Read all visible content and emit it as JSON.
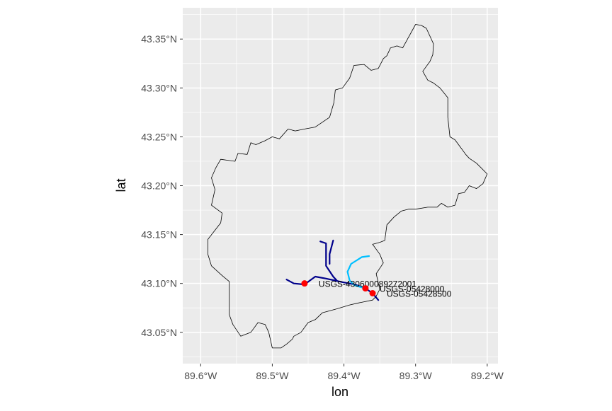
{
  "chart_data": {
    "type": "map",
    "xlabel": "lon",
    "ylabel": "lat",
    "xlim": [
      -89.625,
      -89.185
    ],
    "ylim": [
      43.018,
      43.382
    ],
    "x_ticks": [
      {
        "value": -89.6,
        "label": "89.6°W"
      },
      {
        "value": -89.5,
        "label": "89.5°W"
      },
      {
        "value": -89.4,
        "label": "89.4°W"
      },
      {
        "value": -89.3,
        "label": "89.3°W"
      },
      {
        "value": -89.2,
        "label": "89.2°W"
      }
    ],
    "y_ticks": [
      {
        "value": 43.05,
        "label": "43.05°N"
      },
      {
        "value": 43.1,
        "label": "43.10°N"
      },
      {
        "value": 43.15,
        "label": "43.15°N"
      },
      {
        "value": 43.2,
        "label": "43.20°N"
      },
      {
        "value": 43.25,
        "label": "43.25°N"
      },
      {
        "value": 43.3,
        "label": "43.30°N"
      },
      {
        "value": 43.35,
        "label": "43.35°N"
      }
    ],
    "panel_background": "#ebebeb",
    "grid_color": "#ffffff",
    "basin_outline_color": "#000000",
    "point_color": "#ff0000",
    "basin_outline": [
      [
        -89.58,
        43.196
      ],
      [
        -89.585,
        43.208
      ],
      [
        -89.579,
        43.218
      ],
      [
        -89.572,
        43.227
      ],
      [
        -89.562,
        43.226
      ],
      [
        -89.552,
        43.225
      ],
      [
        -89.548,
        43.233
      ],
      [
        -89.535,
        43.232
      ],
      [
        -89.53,
        43.244
      ],
      [
        -89.523,
        43.242
      ],
      [
        -89.51,
        43.246
      ],
      [
        -89.5,
        43.25
      ],
      [
        -89.49,
        43.248
      ],
      [
        -89.478,
        43.258
      ],
      [
        -89.468,
        43.256
      ],
      [
        -89.455,
        43.258
      ],
      [
        -89.44,
        43.26
      ],
      [
        -89.43,
        43.265
      ],
      [
        -89.42,
        43.27
      ],
      [
        -89.414,
        43.285
      ],
      [
        -89.412,
        43.298
      ],
      [
        -89.402,
        43.3
      ],
      [
        -89.392,
        43.31
      ],
      [
        -89.386,
        43.323
      ],
      [
        -89.372,
        43.324
      ],
      [
        -89.362,
        43.318
      ],
      [
        -89.352,
        43.32
      ],
      [
        -89.345,
        43.33
      ],
      [
        -89.34,
        43.333
      ],
      [
        -89.335,
        43.341
      ],
      [
        -89.326,
        43.343
      ],
      [
        -89.318,
        43.341
      ],
      [
        -89.3,
        43.365
      ],
      [
        -89.292,
        43.364
      ],
      [
        -89.285,
        43.361
      ],
      [
        -89.275,
        43.345
      ],
      [
        -89.276,
        43.334
      ],
      [
        -89.28,
        43.327
      ],
      [
        -89.29,
        43.317
      ],
      [
        -89.283,
        43.308
      ],
      [
        -89.275,
        43.305
      ],
      [
        -89.266,
        43.3
      ],
      [
        -89.255,
        43.29
      ],
      [
        -89.255,
        43.27
      ],
      [
        -89.252,
        43.25
      ],
      [
        -89.245,
        43.247
      ],
      [
        -89.238,
        43.24
      ],
      [
        -89.23,
        43.232
      ],
      [
        -89.225,
        43.228
      ],
      [
        -89.215,
        43.223
      ],
      [
        -89.2,
        43.212
      ],
      [
        -89.206,
        43.202
      ],
      [
        -89.215,
        43.197
      ],
      [
        -89.225,
        43.2
      ],
      [
        -89.232,
        43.193
      ],
      [
        -89.24,
        43.192
      ],
      [
        -89.245,
        43.18
      ],
      [
        -89.255,
        43.178
      ],
      [
        -89.264,
        43.182
      ],
      [
        -89.27,
        43.178
      ],
      [
        -89.283,
        43.178
      ],
      [
        -89.3,
        43.176
      ],
      [
        -89.31,
        43.176
      ],
      [
        -89.32,
        43.174
      ],
      [
        -89.33,
        43.168
      ],
      [
        -89.34,
        43.16
      ],
      [
        -89.343,
        43.144
      ],
      [
        -89.35,
        43.142
      ],
      [
        -89.36,
        43.14
      ],
      [
        -89.35,
        43.13
      ],
      [
        -89.345,
        43.121
      ],
      [
        -89.355,
        43.11
      ],
      [
        -89.35,
        43.094
      ],
      [
        -89.355,
        43.087
      ],
      [
        -89.36,
        43.083
      ],
      [
        -89.38,
        43.08
      ],
      [
        -89.392,
        43.078
      ],
      [
        -89.41,
        43.074
      ],
      [
        -89.43,
        43.07
      ],
      [
        -89.44,
        43.063
      ],
      [
        -89.45,
        43.06
      ],
      [
        -89.46,
        43.05
      ],
      [
        -89.47,
        43.046
      ],
      [
        -89.472,
        43.043
      ],
      [
        -89.48,
        43.038
      ],
      [
        -89.488,
        43.034
      ],
      [
        -89.5,
        43.034
      ],
      [
        -89.505,
        43.05
      ],
      [
        -89.51,
        43.058
      ],
      [
        -89.52,
        43.06
      ],
      [
        -89.53,
        43.05
      ],
      [
        -89.544,
        43.046
      ],
      [
        -89.555,
        43.058
      ],
      [
        -89.56,
        43.068
      ],
      [
        -89.56,
        43.085
      ],
      [
        -89.56,
        43.102
      ],
      [
        -89.57,
        43.108
      ],
      [
        -89.585,
        43.118
      ],
      [
        -89.59,
        43.13
      ],
      [
        -89.59,
        43.145
      ],
      [
        -89.572,
        43.162
      ],
      [
        -89.57,
        43.172
      ],
      [
        -89.585,
        43.18
      ],
      [
        -89.58,
        43.196
      ]
    ],
    "streams": [
      {
        "color": "#00008b",
        "points": [
          [
            -89.48,
            43.104
          ],
          [
            -89.47,
            43.1
          ],
          [
            -89.455,
            43.099
          ],
          [
            -89.44,
            43.107
          ],
          [
            -89.425,
            43.105
          ],
          [
            -89.4,
            43.101
          ],
          [
            -89.385,
            43.099
          ],
          [
            -89.37,
            43.095
          ],
          [
            -89.36,
            43.09
          ],
          [
            -89.352,
            43.083
          ]
        ]
      },
      {
        "color": "#00008b",
        "points": [
          [
            -89.433,
            43.143
          ],
          [
            -89.425,
            43.141
          ],
          [
            -89.425,
            43.128
          ],
          [
            -89.425,
            43.118
          ],
          [
            -89.415,
            43.107
          ],
          [
            -89.41,
            43.103
          ]
        ]
      },
      {
        "color": "#00008b",
        "points": [
          [
            -89.415,
            43.144
          ],
          [
            -89.42,
            43.13
          ],
          [
            -89.42,
            43.12
          ]
        ]
      },
      {
        "color": "#00bfff",
        "points": [
          [
            -89.365,
            43.128
          ],
          [
            -89.375,
            43.127
          ],
          [
            -89.39,
            43.12
          ],
          [
            -89.395,
            43.112
          ],
          [
            -89.392,
            43.103
          ],
          [
            -89.385,
            43.098
          ],
          [
            -89.37,
            43.095
          ]
        ]
      }
    ],
    "sites": [
      {
        "id": "USGS-430600089272001",
        "lon": -89.455,
        "lat": 43.1
      },
      {
        "id": "USGS-05428000",
        "lon": -89.37,
        "lat": 43.095
      },
      {
        "id": "USGS-05428500",
        "lon": -89.36,
        "lat": 43.09
      }
    ]
  }
}
